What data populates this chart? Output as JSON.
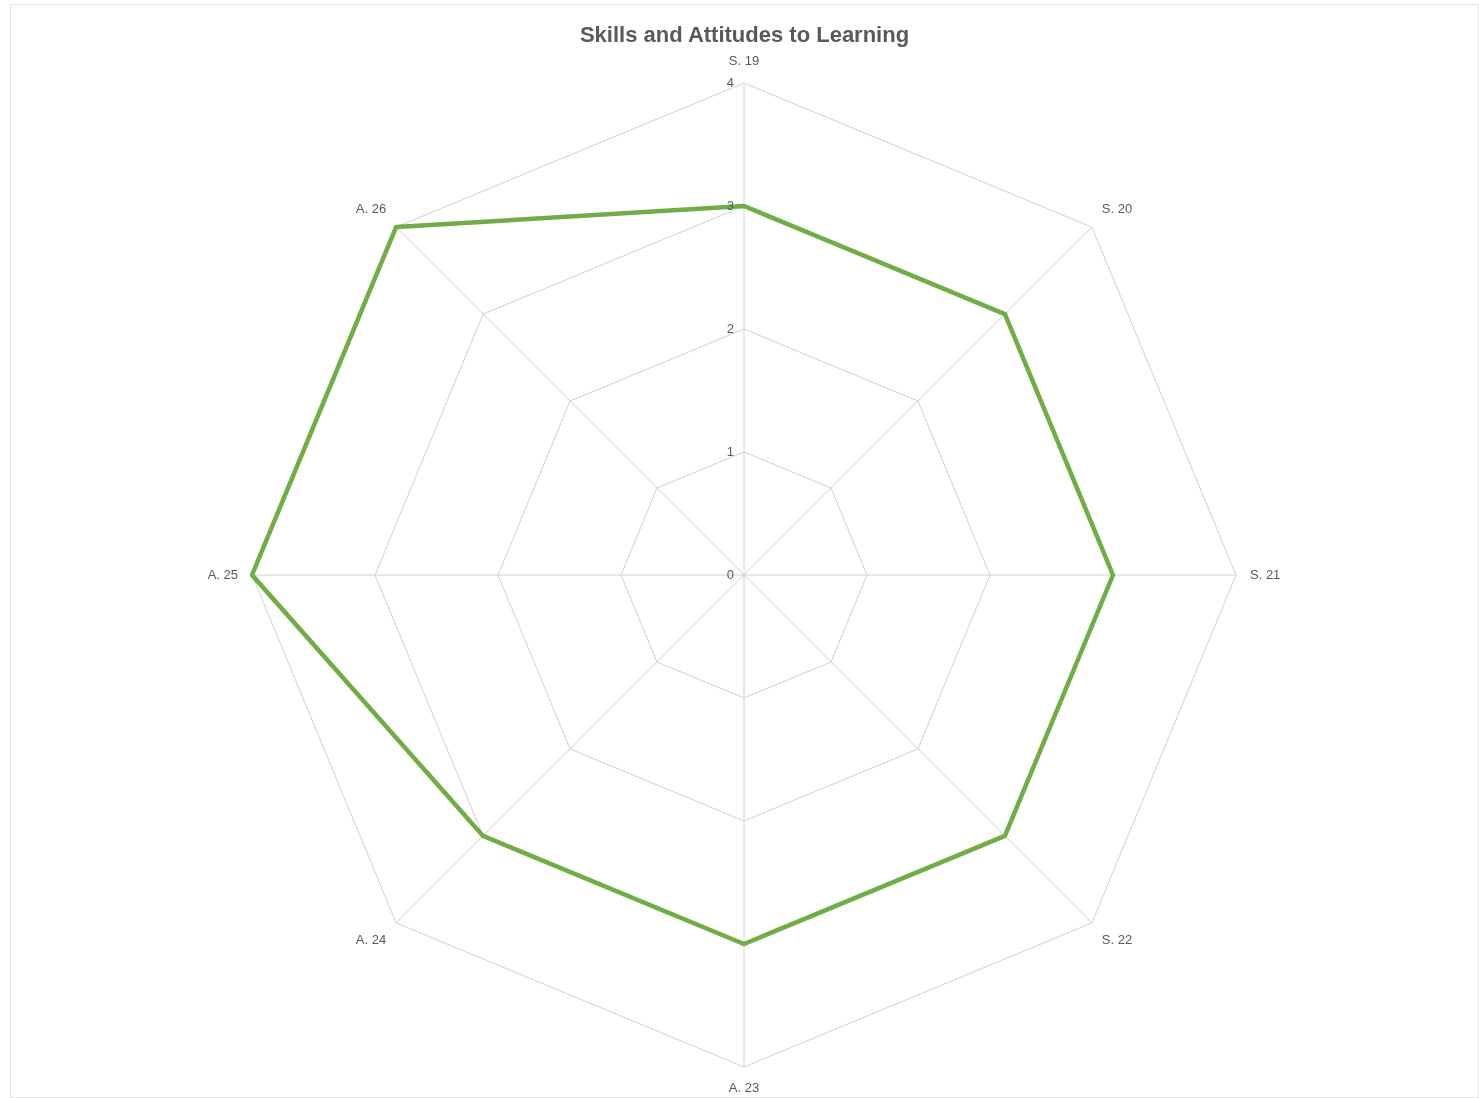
{
  "chart_data": {
    "type": "radar",
    "title": "Skills and Attitudes to Learning",
    "categories": [
      "S. 19",
      "S. 20",
      "S. 21",
      "S. 22",
      "A. 23",
      "A. 24",
      "A. 25",
      "A. 26"
    ],
    "series": [
      {
        "color": "#70ad47",
        "values": [
          3,
          3,
          3,
          3,
          3,
          3,
          4,
          4
        ]
      }
    ],
    "ylim": [
      0,
      4
    ],
    "yticks": [
      0,
      1,
      2,
      3,
      4
    ],
    "grid": true,
    "legend": false,
    "marker": "none"
  }
}
